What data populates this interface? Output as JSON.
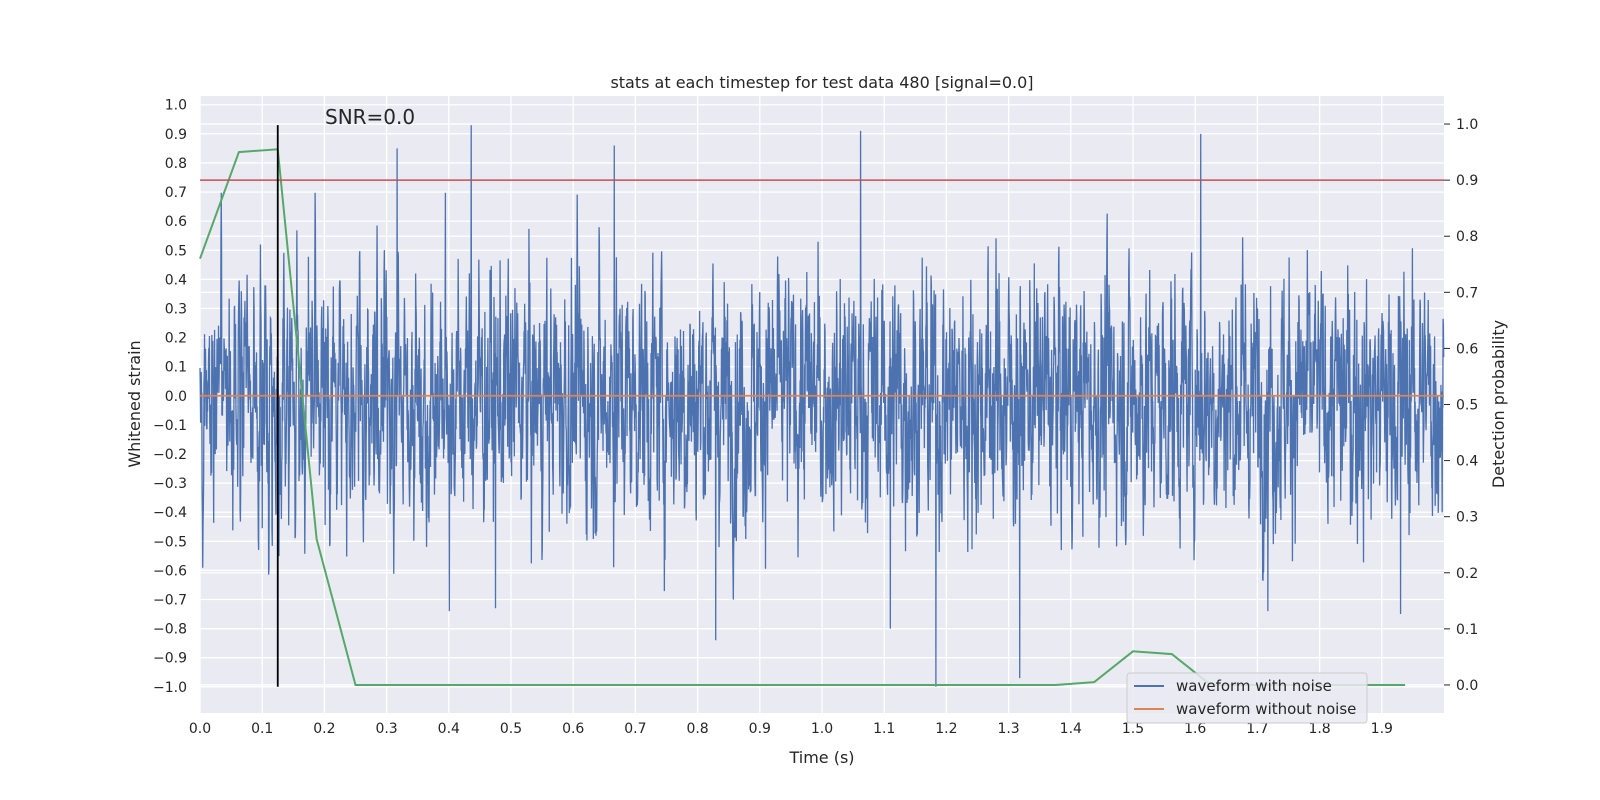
{
  "chart_data": {
    "type": "line",
    "title": "stats at each timestep for test data 480 [signal=0.0]",
    "annotation": "SNR=0.0",
    "xlabel": "Time (s)",
    "ylabel": "Whitened strain",
    "y2label": "Detection probability",
    "xlim": [
      0.0,
      2.0
    ],
    "ylim": [
      -1.09,
      1.03
    ],
    "y2lim": [
      -0.05,
      1.05
    ],
    "xticks": [
      "0.0",
      "0.1",
      "0.2",
      "0.3",
      "0.4",
      "0.5",
      "0.6",
      "0.7",
      "0.8",
      "0.9",
      "1.0",
      "1.1",
      "1.2",
      "1.3",
      "1.4",
      "1.5",
      "1.6",
      "1.7",
      "1.8",
      "1.9"
    ],
    "yticks": [
      "1.0",
      "0.9",
      "0.8",
      "0.7",
      "0.6",
      "0.5",
      "0.4",
      "0.3",
      "0.2",
      "0.1",
      "0.0",
      "−0.1",
      "−0.2",
      "−0.3",
      "−0.4",
      "−0.5",
      "−0.6",
      "−0.7",
      "−0.8",
      "−0.9",
      "−1.0"
    ],
    "y2ticks": [
      "1.0",
      "0.9",
      "0.8",
      "0.7",
      "0.6",
      "0.5",
      "0.4",
      "0.3",
      "0.2",
      "0.1",
      "0.0"
    ],
    "grid": true,
    "legend_position": "lower-right",
    "series": [
      {
        "name": "waveform with noise",
        "axis": "left",
        "color": "#4c72b0",
        "sample_rate": 2048,
        "peaks": [
          {
            "x": 0.436,
            "y": 0.93
          },
          {
            "x": 1.062,
            "y": 0.91
          },
          {
            "x": 1.609,
            "y": 0.9
          },
          {
            "x": 0.666,
            "y": 0.86
          },
          {
            "x": 0.317,
            "y": 0.85
          },
          {
            "x": 1.183,
            "y": -1.0
          },
          {
            "x": 1.318,
            "y": -0.97
          },
          {
            "x": 0.829,
            "y": -0.84
          },
          {
            "x": 1.11,
            "y": -0.8
          },
          {
            "x": 1.93,
            "y": -0.75
          },
          {
            "x": 1.717,
            "y": -0.74
          },
          {
            "x": 0.401,
            "y": -0.74
          },
          {
            "x": 0.475,
            "y": -0.73
          }
        ],
        "value_range": [
          -1.0,
          0.93
        ]
      },
      {
        "name": "waveform without noise",
        "axis": "left",
        "color": "#dd8452",
        "constant_value": 0.0
      },
      {
        "name": "",
        "axis": "right",
        "color": "#55a868",
        "x": [
          0.0,
          0.0625,
          0.125,
          0.1875,
          0.25,
          0.3125,
          0.375,
          0.4375,
          0.5,
          0.5625,
          0.625,
          0.6875,
          0.75,
          0.8125,
          0.875,
          0.9375,
          1.0,
          1.0625,
          1.125,
          1.1875,
          1.25,
          1.3125,
          1.375,
          1.4375,
          1.5,
          1.5625,
          1.625,
          1.6875,
          1.75,
          1.8125,
          1.875,
          1.9375
        ],
        "values": [
          0.76,
          0.95,
          0.955,
          0.26,
          0.0,
          0.0,
          0.0,
          0.0,
          0.0,
          0.0,
          0.0,
          0.0,
          0.0,
          0.0,
          0.0,
          0.0,
          0.0,
          0.0,
          0.0,
          0.0,
          0.0,
          0.0,
          0.0,
          0.005,
          0.06,
          0.055,
          0.0,
          0.0,
          0.0,
          0.0,
          0.0,
          0.0
        ]
      }
    ],
    "threshold_line": {
      "axis": "right",
      "value": 0.9,
      "color": "#c44e52"
    },
    "marker_line": {
      "x": 0.125,
      "y_from": -1.0,
      "y_to": 0.93,
      "color": "#000000"
    }
  }
}
